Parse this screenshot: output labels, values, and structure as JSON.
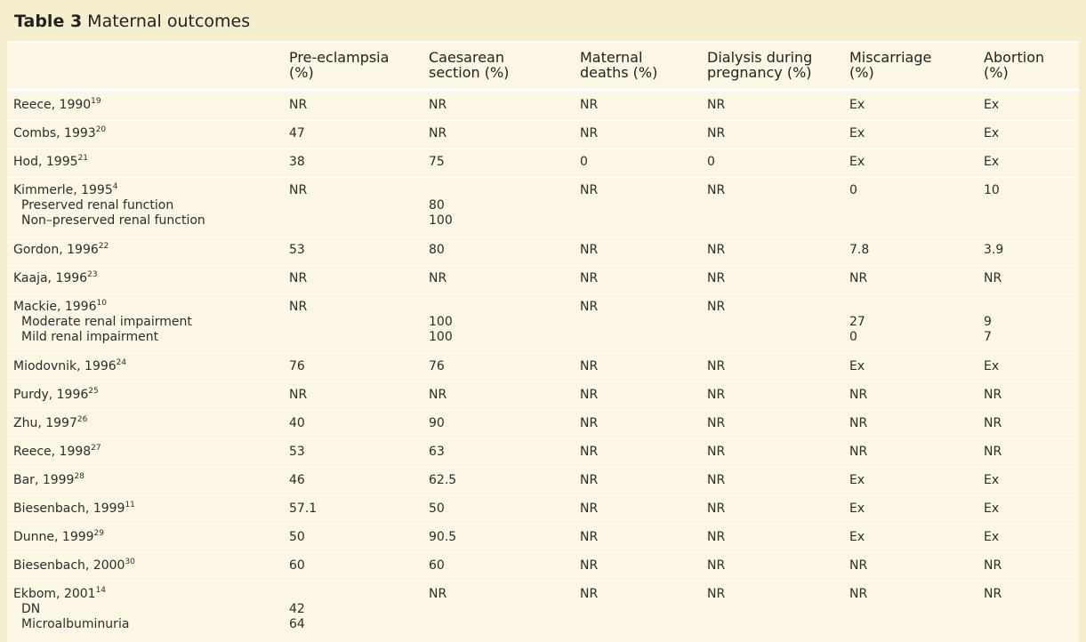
{
  "title": {
    "label": "Table 3",
    "text": "Maternal outcomes"
  },
  "table": {
    "columns": [
      [
        "Pre-eclampsia",
        "(%)"
      ],
      [
        "Caesarean",
        "section (%)"
      ],
      [
        "Maternal",
        "deaths (%)"
      ],
      [
        "Dialysis during",
        "pregnancy (%)"
      ],
      [
        "Miscarriage",
        "(%)"
      ],
      [
        "Abortion",
        "(%)"
      ]
    ],
    "rows": [
      {
        "study": "Reece, 1990",
        "ref": "19",
        "values": [
          "NR",
          "NR",
          "NR",
          "NR",
          "Ex",
          "Ex"
        ]
      },
      {
        "study": "Combs, 1993",
        "ref": "20",
        "values": [
          "47",
          "NR",
          "NR",
          "NR",
          "Ex",
          "Ex"
        ]
      },
      {
        "study": "Hod, 1995",
        "ref": "21",
        "values": [
          "38",
          "75",
          "0",
          "0",
          "Ex",
          "Ex"
        ]
      },
      {
        "study": "Kimmerle, 1995",
        "ref": "4",
        "values": [
          "NR",
          null,
          "NR",
          "NR",
          "0",
          "10"
        ],
        "subrows": [
          {
            "label": "Preserved renal function",
            "values": [
              null,
              "80",
              null,
              null,
              null,
              null
            ]
          },
          {
            "label": "Non–preserved renal function",
            "values": [
              null,
              "100",
              null,
              null,
              null,
              null
            ]
          }
        ]
      },
      {
        "study": "Gordon, 1996",
        "ref": "22",
        "values": [
          "53",
          "80",
          "NR",
          "NR",
          "7.8",
          "3.9"
        ]
      },
      {
        "study": "Kaaja, 1996",
        "ref": "23",
        "values": [
          "NR",
          "NR",
          "NR",
          "NR",
          "NR",
          "NR"
        ]
      },
      {
        "study": "Mackie, 1996",
        "ref": "10",
        "values": [
          "NR",
          null,
          "NR",
          "NR",
          null,
          null
        ],
        "subrows": [
          {
            "label": "Moderate renal impairment",
            "values": [
              null,
              "100",
              null,
              null,
              "27",
              "9"
            ]
          },
          {
            "label": "Mild renal impairment",
            "values": [
              null,
              "100",
              null,
              null,
              "0",
              "7"
            ]
          }
        ]
      },
      {
        "study": "Miodovnik, 1996",
        "ref": "24",
        "values": [
          "76",
          "76",
          "NR",
          "NR",
          "Ex",
          "Ex"
        ]
      },
      {
        "study": "Purdy, 1996",
        "ref": "25",
        "values": [
          "NR",
          "NR",
          "NR",
          "NR",
          "NR",
          "NR"
        ]
      },
      {
        "study": "Zhu, 1997",
        "ref": "26",
        "values": [
          "40",
          "90",
          "NR",
          "NR",
          "NR",
          "NR"
        ]
      },
      {
        "study": "Reece, 1998",
        "ref": "27",
        "values": [
          "53",
          "63",
          "NR",
          "NR",
          "NR",
          "NR"
        ]
      },
      {
        "study": "Bar, 1999",
        "ref": "28",
        "values": [
          "46",
          "62.5",
          "NR",
          "NR",
          "Ex",
          "Ex"
        ]
      },
      {
        "study": "Biesenbach, 1999",
        "ref": "11",
        "values": [
          "57.1",
          "50",
          "NR",
          "NR",
          "Ex",
          "Ex"
        ]
      },
      {
        "study": "Dunne, 1999",
        "ref": "29",
        "values": [
          "50",
          "90.5",
          "NR",
          "NR",
          "Ex",
          "Ex"
        ]
      },
      {
        "study": "Biesenbach, 2000",
        "ref": "30",
        "values": [
          "60",
          "60",
          "NR",
          "NR",
          "NR",
          "NR"
        ]
      },
      {
        "study": "Ekbom, 2001",
        "ref": "14",
        "values": [
          null,
          "NR",
          "NR",
          "NR",
          "NR",
          "NR"
        ],
        "subrows": [
          {
            "label": "DN",
            "values": [
              "42",
              null,
              null,
              null,
              null,
              null
            ]
          },
          {
            "label": "Microalbuminuria",
            "values": [
              "64",
              null,
              null,
              null,
              null,
              null
            ]
          }
        ]
      }
    ]
  }
}
